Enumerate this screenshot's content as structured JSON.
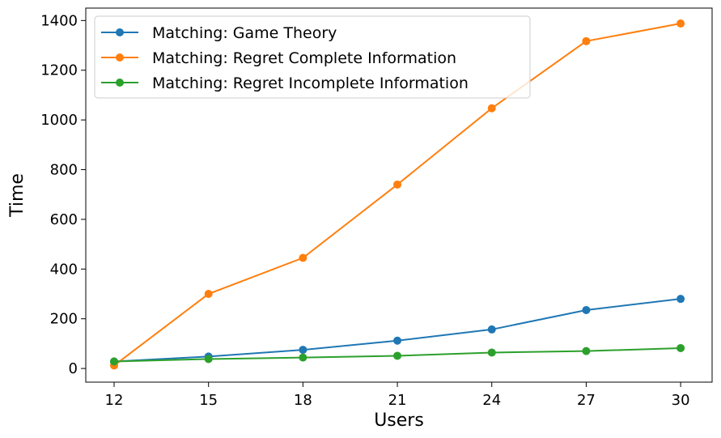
{
  "chart_data": {
    "type": "line",
    "x": [
      12,
      15,
      18,
      21,
      24,
      27,
      30
    ],
    "xlabel": "Users",
    "ylabel": "Time",
    "xticks": [
      "12",
      "15",
      "18",
      "21",
      "24",
      "27",
      "30"
    ],
    "yticks": [
      "0",
      "200",
      "400",
      "600",
      "800",
      "1000",
      "1200",
      "1400"
    ],
    "xlim": [
      11.1,
      31.0
    ],
    "ylim": [
      -55,
      1450
    ],
    "grid": false,
    "legend_position": "top-left",
    "series": [
      {
        "name": "Matching: Game Theory",
        "color": "#1f77b4",
        "values": [
          28,
          48,
          75,
          112,
          157,
          235,
          280
        ]
      },
      {
        "name": "Matching: Regret Complete Information",
        "color": "#ff7f0e",
        "values": [
          12,
          300,
          445,
          740,
          1047,
          1317,
          1388
        ]
      },
      {
        "name": "Matching: Regret Incomplete Information",
        "color": "#2ca02c",
        "values": [
          28,
          38,
          44,
          51,
          64,
          70,
          82
        ]
      }
    ]
  }
}
